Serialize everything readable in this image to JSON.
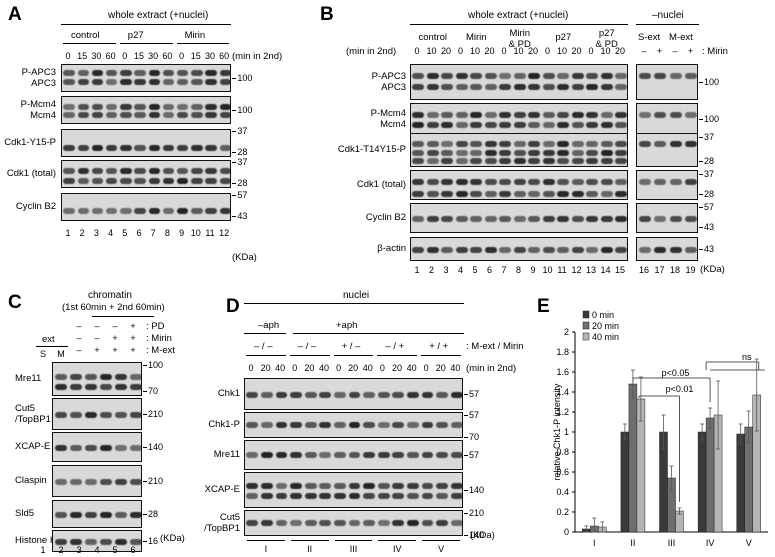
{
  "panelA": {
    "letter": "A",
    "header": "whole extract (+nuclei)",
    "groups": [
      "control",
      "p27",
      "Mirin"
    ],
    "timepoints": [
      "0",
      "15",
      "30",
      "60",
      "0",
      "15",
      "30",
      "60",
      "0",
      "15",
      "30",
      "60"
    ],
    "time_unit": "(min in 2nd)",
    "blots": [
      {
        "label": "P-APC3\nAPC3",
        "mw": [
          "100"
        ]
      },
      {
        "label": "P-Mcm4\nMcm4",
        "mw": [
          "100"
        ]
      },
      {
        "label": "Cdk1-Y15-P",
        "mw": [
          "37",
          "28"
        ]
      },
      {
        "label": "Cdk1 (total)",
        "mw": [
          "37",
          "28"
        ]
      },
      {
        "label": "Cyclin B2",
        "mw": [
          "57",
          "43"
        ]
      }
    ],
    "lanes": [
      "1",
      "2",
      "3",
      "4",
      "5",
      "6",
      "7",
      "8",
      "9",
      "10",
      "11",
      "12"
    ],
    "kda": "(KDa)"
  },
  "panelB": {
    "letter": "B",
    "header_left": "whole extract (+nuclei)",
    "header_right": "–nuclei",
    "time_label": "(min in 2nd)",
    "groups": [
      "control",
      "Mirin",
      "Mirin\n& PD",
      "p27",
      "p27\n& PD"
    ],
    "right_groups": [
      "S-ext",
      "M-ext"
    ],
    "timepoints": [
      "0",
      "10",
      "20",
      "0",
      "10",
      "20",
      "0",
      "10",
      "20",
      "0",
      "10",
      "20",
      "0",
      "10",
      "20"
    ],
    "mirin_signs": [
      "–",
      "+",
      "–",
      "+"
    ],
    "mirin_label": ": Mirin",
    "blots": [
      {
        "label": "P-APC3\nAPC3",
        "mw": [
          "100"
        ]
      },
      {
        "label": "P-Mcm4\nMcm4",
        "mw": [
          "100"
        ]
      },
      {
        "label": "Cdk1-T14Y15-P",
        "mw": [
          "37",
          "28"
        ]
      },
      {
        "label": "Cdk1 (total)",
        "mw": [
          "37",
          "28"
        ]
      },
      {
        "label": "Cyclin B2",
        "mw": [
          "57",
          "43"
        ]
      },
      {
        "label": "β-actin",
        "mw": [
          "43"
        ]
      }
    ],
    "lanes": [
      "1",
      "2",
      "3",
      "4",
      "5",
      "6",
      "7",
      "8",
      "9",
      "10",
      "11",
      "12",
      "13",
      "14",
      "15",
      "16",
      "17",
      "18",
      "19"
    ],
    "kda": "(KDa)"
  },
  "panelC": {
    "letter": "C",
    "title_line1": "chromatin",
    "title_line2": "(1st 60min + 2nd 60min)",
    "ext_label": "ext",
    "ext_lanes": [
      "S",
      "M"
    ],
    "pd_row": [
      "–",
      "–",
      "–",
      "+"
    ],
    "pd_label": ": PD",
    "mirin_row": [
      "–",
      "–",
      "+",
      "+"
    ],
    "mirin_label": ": Mirin",
    "mext_row": [
      "–",
      "+",
      "+",
      "+"
    ],
    "mext_label": ": M-ext",
    "blots": [
      {
        "label": "Mre11",
        "mw": [
          "100",
          "70"
        ]
      },
      {
        "label": "Cut5\n/TopBP1",
        "mw": [
          "210"
        ]
      },
      {
        "label": "XCAP-E",
        "mw": [
          "140"
        ]
      },
      {
        "label": "Claspin",
        "mw": [
          "210"
        ]
      },
      {
        "label": "Sld5",
        "mw": [
          "28"
        ]
      },
      {
        "label": "Histone H3",
        "mw": [
          "16"
        ]
      }
    ],
    "lanes": [
      "1",
      "2",
      "3",
      "4",
      "5",
      "6"
    ],
    "kda": "(KDa)"
  },
  "panelD": {
    "letter": "D",
    "header": "nuclei",
    "aph_minus": "–aph",
    "aph_plus": "+aph",
    "conditions": [
      "– / –",
      "– / –",
      "+ / –",
      "– / +",
      "+ / +"
    ],
    "cond_label": ": M-ext / Mirin",
    "timepoints": [
      "0",
      "20",
      "40",
      "0",
      "20",
      "40",
      "0",
      "20",
      "40",
      "0",
      "20",
      "40",
      "0",
      "20",
      "40"
    ],
    "time_label": "(min in 2nd)",
    "blots": [
      {
        "label": "Chk1",
        "mw": [
          "57"
        ]
      },
      {
        "label": "Chk1-P",
        "mw": [
          "57",
          "70"
        ]
      },
      {
        "label": "Mre11",
        "mw": [
          "57"
        ]
      },
      {
        "label": "XCAP-E",
        "mw": [
          "140"
        ]
      },
      {
        "label": "Cut5\n/TopBP1",
        "mw": [
          "210",
          "140"
        ]
      }
    ],
    "groups": [
      "I",
      "II",
      "III",
      "IV",
      "V"
    ],
    "kda": "(KDa)"
  },
  "panelE": {
    "letter": "E",
    "ns_label": "ns",
    "p1_label": "p<0.05",
    "p2_label": "p<0.01"
  },
  "chart_data": {
    "type": "bar",
    "categories": [
      "I",
      "II",
      "III",
      "IV",
      "V"
    ],
    "ylabel": "relative Chk1-P intensity",
    "ylim": [
      0,
      2
    ],
    "yticks": [
      0,
      0.2,
      0.4,
      0.6,
      0.8,
      1,
      1.2,
      1.4,
      1.6,
      1.8,
      2
    ],
    "legend_position": "top-left",
    "series": [
      {
        "name": "0 min",
        "color": "#3a3a3a",
        "values": [
          0.03,
          1.0,
          1.0,
          1.0,
          0.98
        ],
        "errors": [
          0.03,
          0.08,
          0.17,
          0.08,
          0.1
        ]
      },
      {
        "name": "20 min",
        "color": "#6e6e6e",
        "values": [
          0.06,
          1.48,
          0.54,
          1.14,
          1.05
        ],
        "errors": [
          0.08,
          0.14,
          0.12,
          0.1,
          0.16
        ]
      },
      {
        "name": "40 min",
        "color": "#b5b5b5",
        "values": [
          0.05,
          1.33,
          0.21,
          1.17,
          1.37
        ],
        "errors": [
          0.05,
          0.22,
          0.03,
          0.34,
          0.36
        ]
      }
    ]
  }
}
